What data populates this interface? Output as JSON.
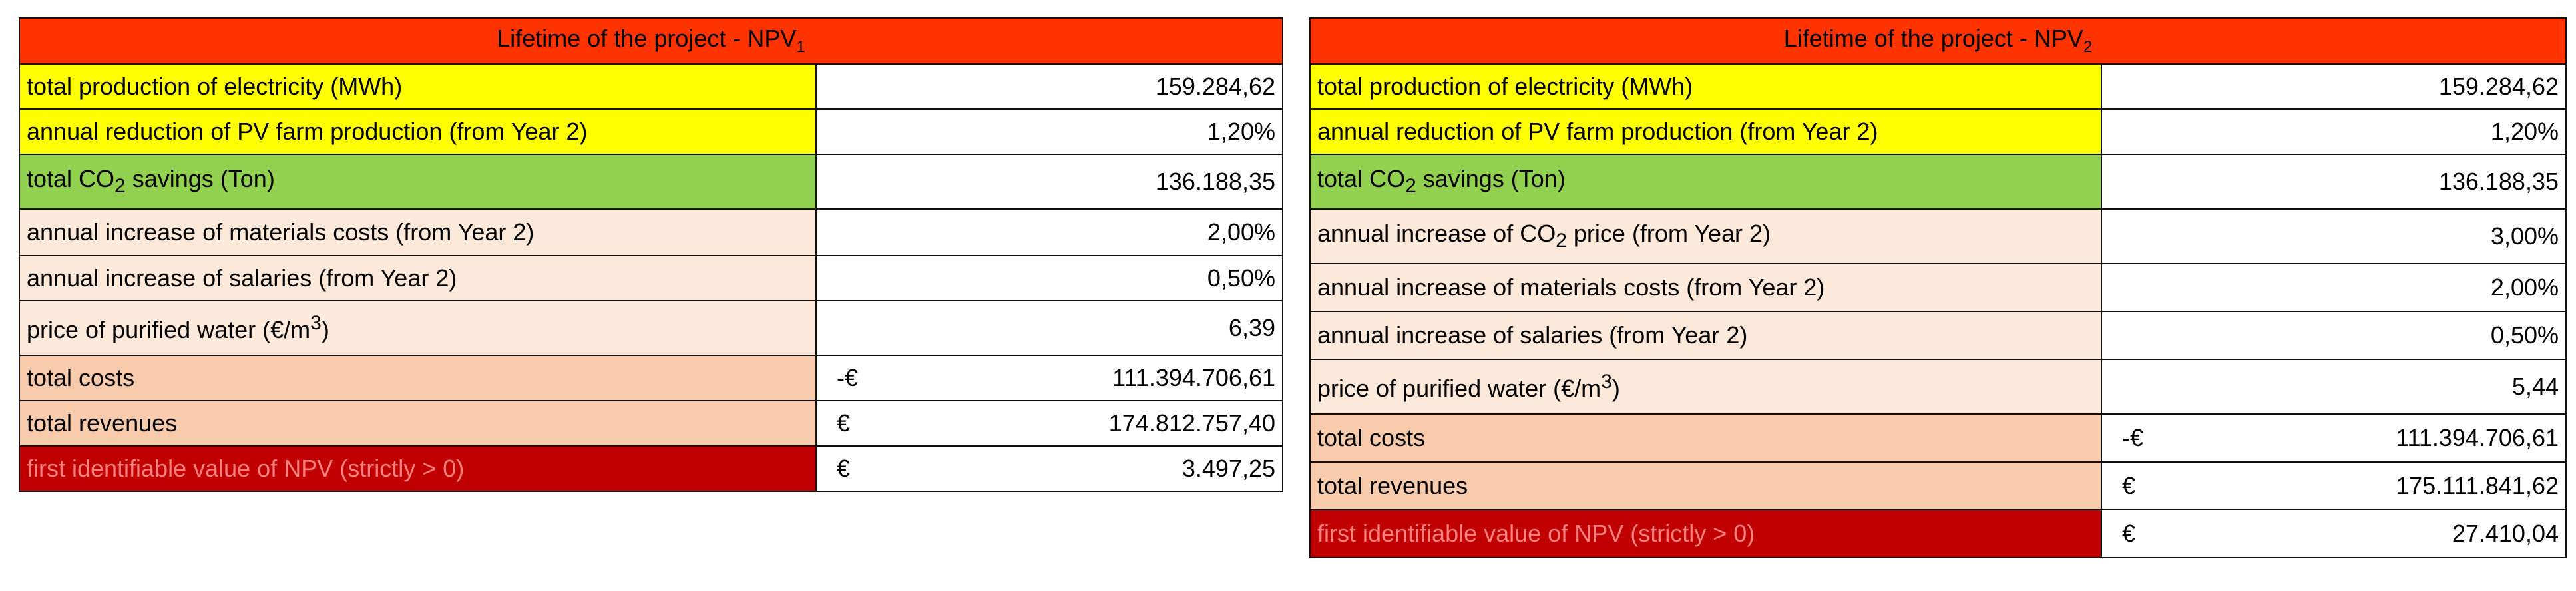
{
  "table1": {
    "title": "Lifetime of the project - NPV",
    "title_sub": "1",
    "rows": [
      {
        "label": "total production of electricity (MWh)",
        "value": "159.284,62"
      },
      {
        "label": "annual reduction of PV farm production (from Year 2)",
        "value": "1,20%"
      },
      {
        "label_pre": "total CO",
        "label_sub": "2",
        "label_post": " savings (Ton)",
        "value": "136.188,35"
      },
      {
        "label": "annual increase of materials costs (from Year 2)",
        "value": "2,00%"
      },
      {
        "label": "annual increase of salaries (from Year 2)",
        "value": "0,50%"
      },
      {
        "label_pre": "price of purified water (€/m",
        "label_sup": "3",
        "label_post": ")",
        "value": "6,39"
      },
      {
        "label": "total costs",
        "symbol": "-€",
        "value": "111.394.706,61"
      },
      {
        "label": "total revenues",
        "symbol": "€",
        "value": "174.812.757,40"
      },
      {
        "label": "first identifiable value of NPV (strictly > 0)",
        "symbol": "€",
        "value": "3.497,25"
      }
    ]
  },
  "table2": {
    "title": "Lifetime of the project - NPV",
    "title_sub": "2",
    "rows": [
      {
        "label": "total production of electricity (MWh)",
        "value": "159.284,62"
      },
      {
        "label": "annual reduction of PV farm production (from Year 2)",
        "value": "1,20%"
      },
      {
        "label_pre": "total CO",
        "label_sub": "2",
        "label_post": " savings (Ton)",
        "value": "136.188,35"
      },
      {
        "label_pre": "annual increase of CO",
        "label_sub": "2",
        "label_post": " price (from Year 2)",
        "value": "3,00%"
      },
      {
        "label": "annual increase of materials costs (from Year 2)",
        "value": "2,00%"
      },
      {
        "label": "annual increase of salaries (from Year 2)",
        "value": "0,50%"
      },
      {
        "label_pre": "price of purified water (€/m",
        "label_sup": "3",
        "label_post": ")",
        "value": "5,44"
      },
      {
        "label": "total costs",
        "symbol": "-€",
        "value": "111.394.706,61"
      },
      {
        "label": "total revenues",
        "symbol": "€",
        "value": "175.111.841,62"
      },
      {
        "label": "first identifiable value of NPV (strictly > 0)",
        "symbol": "€",
        "value": "27.410,04"
      }
    ]
  }
}
